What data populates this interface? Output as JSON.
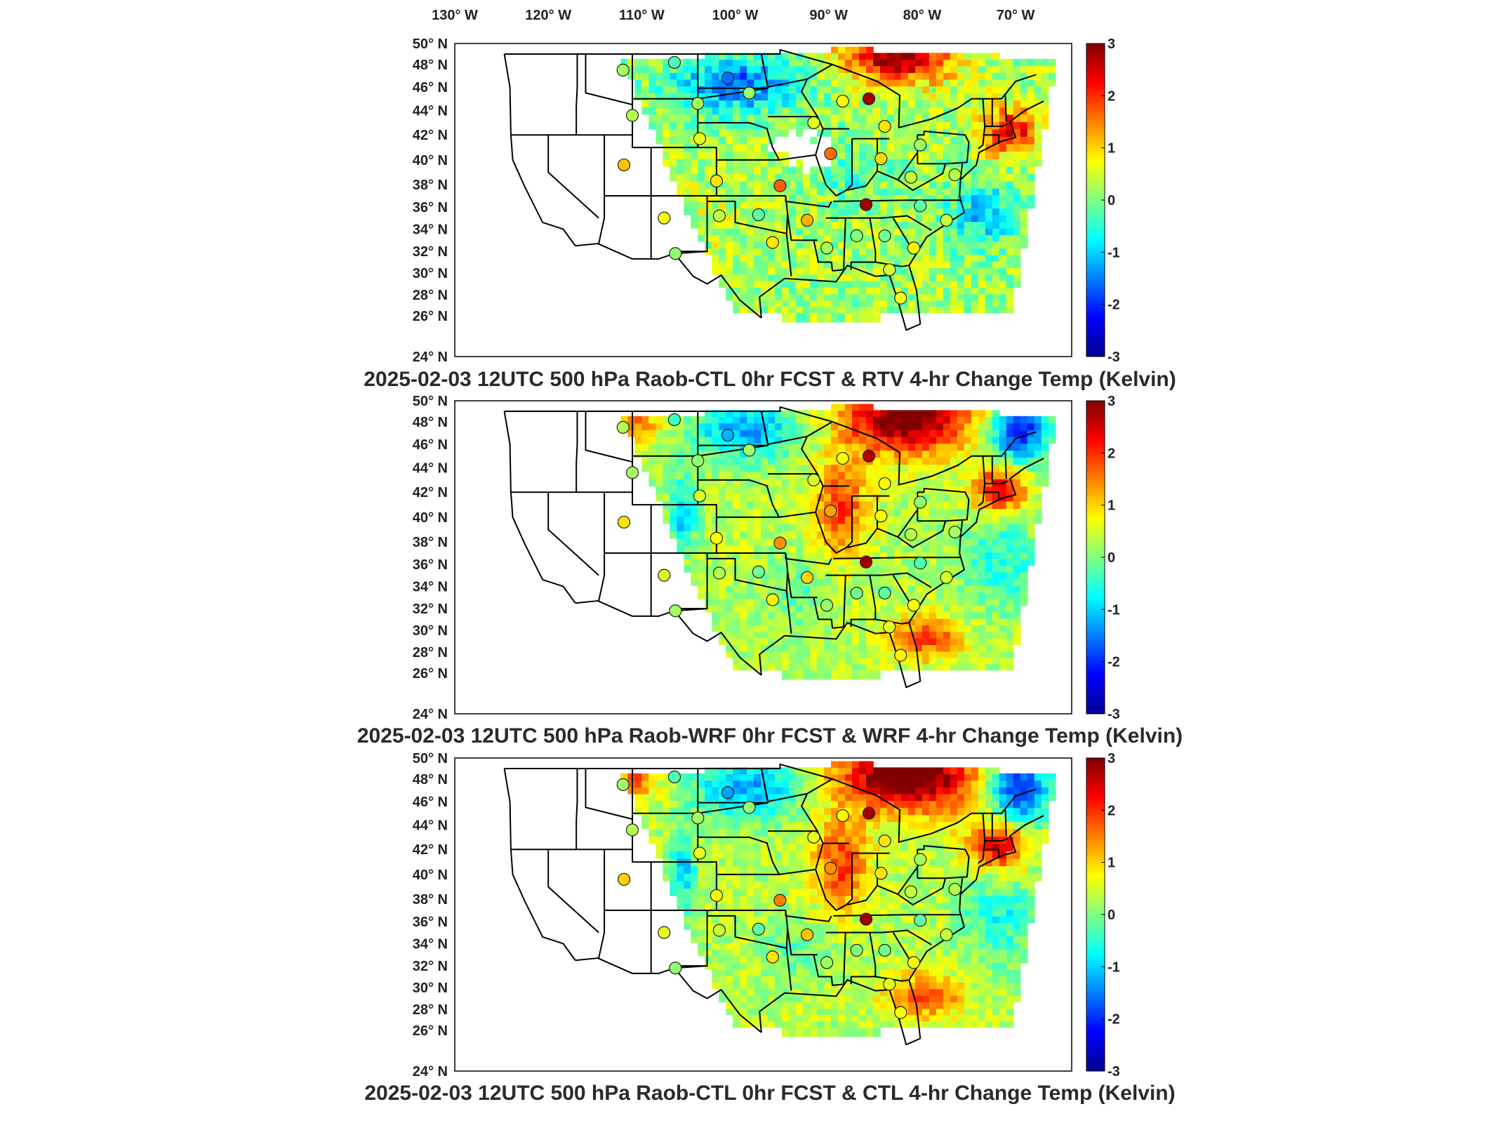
{
  "figure": {
    "lon_labels": [
      "130",
      "120",
      "110",
      "100",
      "90",
      "80",
      "70"
    ],
    "lon_hemisphere": "W",
    "lat_labels": [
      "50",
      "48",
      "46",
      "44",
      "42",
      "40",
      "38",
      "36",
      "34",
      "32",
      "30",
      "28",
      "26",
      "24"
    ],
    "lat_hemisphere": "N",
    "degree_symbol": "°",
    "colorbar": {
      "ticks": [
        "3",
        "2",
        "1",
        "0",
        "-1",
        "-2",
        "-3"
      ],
      "range": [
        -3,
        3
      ],
      "colormap": "jet"
    }
  },
  "panels": [
    {
      "title": "2025-02-03 12UTC 500 hPa Raob-CTL 0hr FCST & RTV 4-hr Change Temp (Kelvin)",
      "field_style": "rtv",
      "stations": [
        {
          "lon": -112.0,
          "lat": 47.5,
          "value": 0.2
        },
        {
          "lon": -106.5,
          "lat": 48.2,
          "value": -0.3
        },
        {
          "lon": -100.8,
          "lat": 46.8,
          "value": -1.6
        },
        {
          "lon": -111.0,
          "lat": 43.6,
          "value": 0.3
        },
        {
          "lon": -104.0,
          "lat": 44.6,
          "value": 0.2
        },
        {
          "lon": -98.5,
          "lat": 45.5,
          "value": 0.1
        },
        {
          "lon": -111.9,
          "lat": 39.6,
          "value": 1.1
        },
        {
          "lon": -103.8,
          "lat": 41.7,
          "value": 0.6
        },
        {
          "lon": -102.0,
          "lat": 38.3,
          "value": 0.9
        },
        {
          "lon": -95.2,
          "lat": 37.9,
          "value": 1.7
        },
        {
          "lon": -91.6,
          "lat": 43.0,
          "value": 0.6
        },
        {
          "lon": -88.5,
          "lat": 44.8,
          "value": 0.8
        },
        {
          "lon": -85.7,
          "lat": 45.0,
          "value": 2.8
        },
        {
          "lon": -84.0,
          "lat": 42.7,
          "value": 0.9
        },
        {
          "lon": -89.8,
          "lat": 40.5,
          "value": 1.6
        },
        {
          "lon": -84.4,
          "lat": 40.1,
          "value": 1.0
        },
        {
          "lon": -80.2,
          "lat": 41.2,
          "value": 0.2
        },
        {
          "lon": -81.2,
          "lat": 38.6,
          "value": 0.4
        },
        {
          "lon": -86.0,
          "lat": 36.2,
          "value": 2.8
        },
        {
          "lon": -80.2,
          "lat": 36.1,
          "value": -0.2
        },
        {
          "lon": -107.6,
          "lat": 35.0,
          "value": 0.7
        },
        {
          "lon": -101.7,
          "lat": 35.2,
          "value": 0.4
        },
        {
          "lon": -97.5,
          "lat": 35.3,
          "value": -0.2
        },
        {
          "lon": -92.3,
          "lat": 34.8,
          "value": 1.2
        },
        {
          "lon": -96.0,
          "lat": 32.8,
          "value": 0.9
        },
        {
          "lon": -106.4,
          "lat": 31.8,
          "value": 0.1
        },
        {
          "lon": -90.2,
          "lat": 32.3,
          "value": 0.2
        },
        {
          "lon": -87.0,
          "lat": 33.4,
          "value": 0.0
        },
        {
          "lon": -84.0,
          "lat": 33.4,
          "value": -0.1
        },
        {
          "lon": -80.9,
          "lat": 32.3,
          "value": 0.8
        },
        {
          "lon": -83.5,
          "lat": 30.3,
          "value": 0.5
        },
        {
          "lon": -82.3,
          "lat": 27.7,
          "value": 0.7
        },
        {
          "lon": -76.5,
          "lat": 38.8,
          "value": 0.3
        },
        {
          "lon": -77.4,
          "lat": 34.8,
          "value": 0.4
        }
      ]
    },
    {
      "title": "2025-02-03 12UTC 500 hPa Raob-WRF 0hr FCST & WRF 4-hr Change Temp (Kelvin)",
      "field_style": "wrf",
      "stations": [
        {
          "lon": -112.0,
          "lat": 47.5,
          "value": 0.3
        },
        {
          "lon": -106.5,
          "lat": 48.2,
          "value": -0.4
        },
        {
          "lon": -100.8,
          "lat": 46.8,
          "value": -1.2
        },
        {
          "lon": -111.0,
          "lat": 43.6,
          "value": 0.2
        },
        {
          "lon": -104.0,
          "lat": 44.6,
          "value": 0.1
        },
        {
          "lon": -98.5,
          "lat": 45.5,
          "value": 0.2
        },
        {
          "lon": -111.9,
          "lat": 39.6,
          "value": 0.9
        },
        {
          "lon": -103.8,
          "lat": 41.7,
          "value": 0.5
        },
        {
          "lon": -102.0,
          "lat": 38.3,
          "value": 0.7
        },
        {
          "lon": -95.2,
          "lat": 37.9,
          "value": 1.4
        },
        {
          "lon": -91.6,
          "lat": 43.0,
          "value": 0.5
        },
        {
          "lon": -88.5,
          "lat": 44.8,
          "value": 0.7
        },
        {
          "lon": -85.7,
          "lat": 45.0,
          "value": 2.7
        },
        {
          "lon": -84.0,
          "lat": 42.7,
          "value": 0.8
        },
        {
          "lon": -89.8,
          "lat": 40.5,
          "value": 1.3
        },
        {
          "lon": -84.4,
          "lat": 40.1,
          "value": 0.8
        },
        {
          "lon": -80.2,
          "lat": 41.2,
          "value": 0.1
        },
        {
          "lon": -81.2,
          "lat": 38.6,
          "value": 0.3
        },
        {
          "lon": -86.0,
          "lat": 36.2,
          "value": 2.8
        },
        {
          "lon": -80.2,
          "lat": 36.1,
          "value": -0.3
        },
        {
          "lon": -107.6,
          "lat": 35.0,
          "value": 0.5
        },
        {
          "lon": -101.7,
          "lat": 35.2,
          "value": 0.3
        },
        {
          "lon": -97.5,
          "lat": 35.3,
          "value": -0.1
        },
        {
          "lon": -92.3,
          "lat": 34.8,
          "value": 1.0
        },
        {
          "lon": -96.0,
          "lat": 32.8,
          "value": 0.8
        },
        {
          "lon": -106.4,
          "lat": 31.8,
          "value": 0.2
        },
        {
          "lon": -90.2,
          "lat": 32.3,
          "value": 0.1
        },
        {
          "lon": -87.0,
          "lat": 33.4,
          "value": -0.1
        },
        {
          "lon": -84.0,
          "lat": 33.4,
          "value": -0.2
        },
        {
          "lon": -80.9,
          "lat": 32.3,
          "value": 0.7
        },
        {
          "lon": -83.5,
          "lat": 30.3,
          "value": 0.6
        },
        {
          "lon": -82.3,
          "lat": 27.7,
          "value": 0.8
        },
        {
          "lon": -76.5,
          "lat": 38.8,
          "value": 0.2
        },
        {
          "lon": -77.4,
          "lat": 34.8,
          "value": 0.5
        }
      ]
    },
    {
      "title": "2025-02-03 12UTC 500 hPa Raob-CTL 0hr FCST & CTL 4-hr Change Temp (Kelvin)",
      "field_style": "ctl",
      "stations": [
        {
          "lon": -112.0,
          "lat": 47.5,
          "value": 0.2
        },
        {
          "lon": -106.5,
          "lat": 48.2,
          "value": -0.3
        },
        {
          "lon": -100.8,
          "lat": 46.8,
          "value": -1.3
        },
        {
          "lon": -111.0,
          "lat": 43.6,
          "value": 0.3
        },
        {
          "lon": -104.0,
          "lat": 44.6,
          "value": 0.2
        },
        {
          "lon": -98.5,
          "lat": 45.5,
          "value": 0.1
        },
        {
          "lon": -111.9,
          "lat": 39.6,
          "value": 1.0
        },
        {
          "lon": -103.8,
          "lat": 41.7,
          "value": 0.6
        },
        {
          "lon": -102.0,
          "lat": 38.3,
          "value": 0.8
        },
        {
          "lon": -95.2,
          "lat": 37.9,
          "value": 1.5
        },
        {
          "lon": -91.6,
          "lat": 43.0,
          "value": 0.6
        },
        {
          "lon": -88.5,
          "lat": 44.8,
          "value": 0.8
        },
        {
          "lon": -85.7,
          "lat": 45.0,
          "value": 2.8
        },
        {
          "lon": -84.0,
          "lat": 42.7,
          "value": 0.9
        },
        {
          "lon": -89.8,
          "lat": 40.5,
          "value": 1.4
        },
        {
          "lon": -84.4,
          "lat": 40.1,
          "value": 0.9
        },
        {
          "lon": -80.2,
          "lat": 41.2,
          "value": 0.2
        },
        {
          "lon": -81.2,
          "lat": 38.6,
          "value": 0.4
        },
        {
          "lon": -86.0,
          "lat": 36.2,
          "value": 2.8
        },
        {
          "lon": -80.2,
          "lat": 36.1,
          "value": -0.2
        },
        {
          "lon": -107.6,
          "lat": 35.0,
          "value": 0.6
        },
        {
          "lon": -101.7,
          "lat": 35.2,
          "value": 0.4
        },
        {
          "lon": -97.5,
          "lat": 35.3,
          "value": -0.2
        },
        {
          "lon": -92.3,
          "lat": 34.8,
          "value": 1.1
        },
        {
          "lon": -96.0,
          "lat": 32.8,
          "value": 0.9
        },
        {
          "lon": -106.4,
          "lat": 31.8,
          "value": 0.1
        },
        {
          "lon": -90.2,
          "lat": 32.3,
          "value": 0.2
        },
        {
          "lon": -87.0,
          "lat": 33.4,
          "value": 0.0
        },
        {
          "lon": -84.0,
          "lat": 33.4,
          "value": -0.1
        },
        {
          "lon": -80.9,
          "lat": 32.3,
          "value": 0.8
        },
        {
          "lon": -83.5,
          "lat": 30.3,
          "value": 0.6
        },
        {
          "lon": -82.3,
          "lat": 27.7,
          "value": 0.7
        },
        {
          "lon": -76.5,
          "lat": 38.8,
          "value": 0.3
        },
        {
          "lon": -77.4,
          "lat": 34.8,
          "value": 0.4
        }
      ]
    }
  ]
}
